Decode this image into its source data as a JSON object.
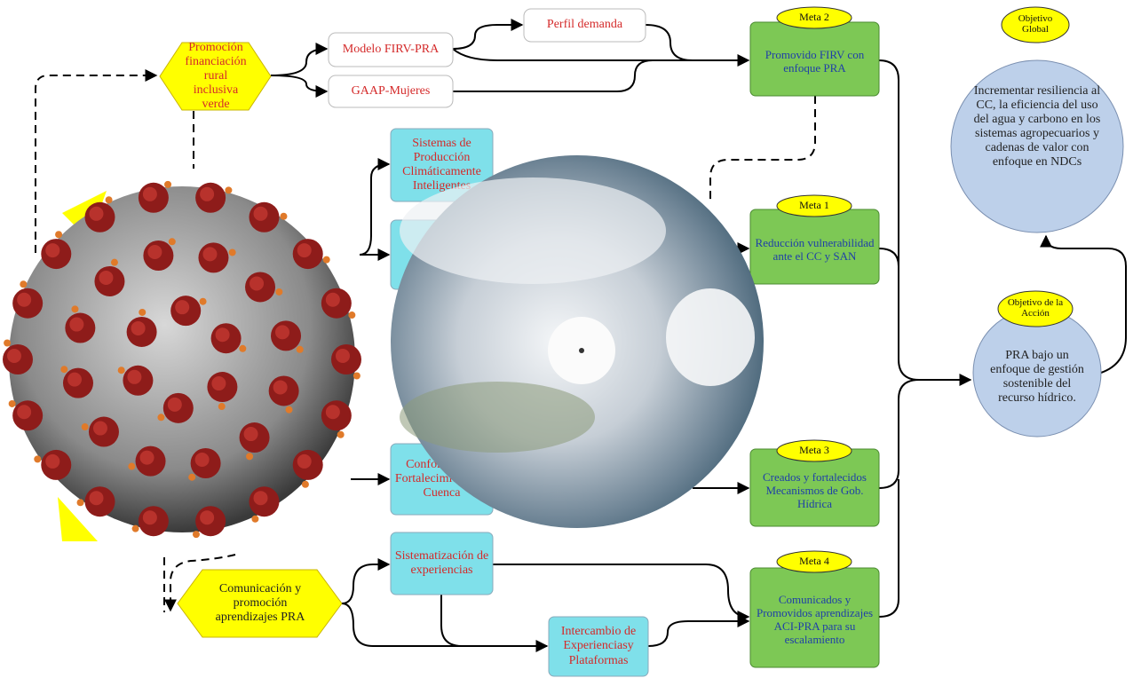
{
  "nodes": {
    "finance_hex": {
      "label": "Promoción financiación rural inclusiva verde"
    },
    "model_firv": {
      "label": "Modelo FIRV-PRA"
    },
    "perfil": {
      "label": "Perfil demanda"
    },
    "gaap": {
      "label": "GAAP-Mujeres"
    },
    "sistemas": {
      "label": "Sistemas de Producción Climáticamente Inteligentes"
    },
    "conformacion": {
      "label": "Conformación Fortalecimiento de Cuenca"
    },
    "sistematizacion": {
      "label": "Sistematización de experiencias"
    },
    "intercambio": {
      "label": "Intercambio de Experienciasy Plataformas"
    },
    "comunicacion_hex": {
      "label": "Comunicación y promoción aprendizajes PRA"
    },
    "meta2": {
      "tag": "Meta 2",
      "label": "Promovido FIRV con enfoque PRA"
    },
    "meta1": {
      "tag": "Meta 1",
      "label": "Reducción vulnerabilidad ante el CC y SAN"
    },
    "meta3": {
      "tag": "Meta 3",
      "label": "Creados y fortalecidos Mecanismos de Gob. Hídrica"
    },
    "meta4": {
      "tag": "Meta 4",
      "label": "Comunicados y Promovidos aprendizajes ACI-PRA para su escalamiento"
    },
    "objetivo_global": {
      "tag": "Objetivo Global",
      "label": "Incrementar resiliencia al CC, la eficiencia del uso del agua y carbono en los sistemas agropecuarios y cadenas de valor con enfoque en NDCs"
    },
    "objetivo_accion": {
      "tag": "Objetivo de la Acción",
      "label": "PRA bajo un enfoque de gestión sostenible del recurso hídrico."
    }
  }
}
